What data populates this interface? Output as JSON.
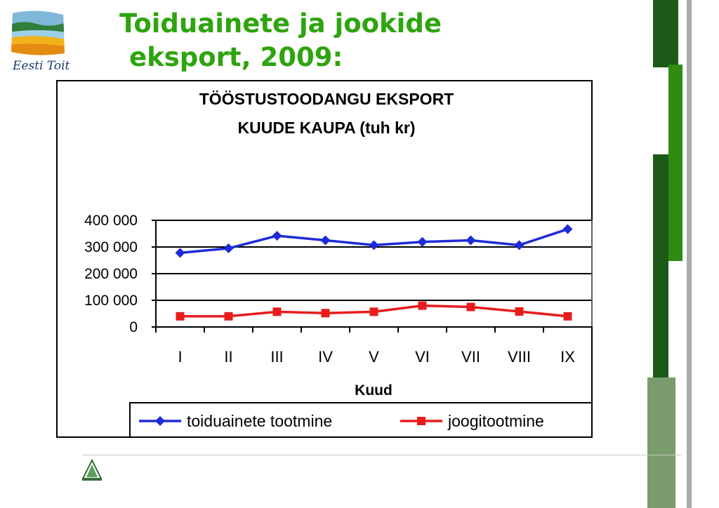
{
  "slide": {
    "title_line1": "Toiduainete ja jookide",
    "title_line2": "eksport, 2009:",
    "logo_text": "Eesti Toit",
    "accent_color": "#2ea40e",
    "dark_green": "#1c5a18",
    "bright_green": "#2e8c12",
    "sage_green": "#7a9c6c"
  },
  "chart_data": {
    "type": "line",
    "title_line1": "TÖÖSTUSTOODANGU EKSPORT",
    "title_line2": "KUUDE KAUPA (tuh kr)",
    "xlabel": "Kuud",
    "ylabel": "",
    "categories": [
      "I",
      "II",
      "III",
      "IV",
      "V",
      "VI",
      "VII",
      "VIII",
      "IX"
    ],
    "ylim": [
      0,
      400000
    ],
    "yticks": [
      0,
      100000,
      200000,
      300000,
      400000
    ],
    "ytick_labels": [
      "0",
      "100 000",
      "200 000",
      "300 000",
      "400 000"
    ],
    "grid": true,
    "legend_position": "bottom",
    "series": [
      {
        "name": "toiduainete tootmine",
        "color": "#1f2bd8",
        "marker": "diamond",
        "values": [
          278000,
          295000,
          342000,
          325000,
          307000,
          319000,
          325000,
          307000,
          367000
        ]
      },
      {
        "name": "joogitootmine",
        "color": "#e81c1c",
        "marker": "square",
        "values": [
          40000,
          40000,
          57000,
          52000,
          57000,
          80000,
          75000,
          58000,
          40000
        ]
      }
    ]
  }
}
